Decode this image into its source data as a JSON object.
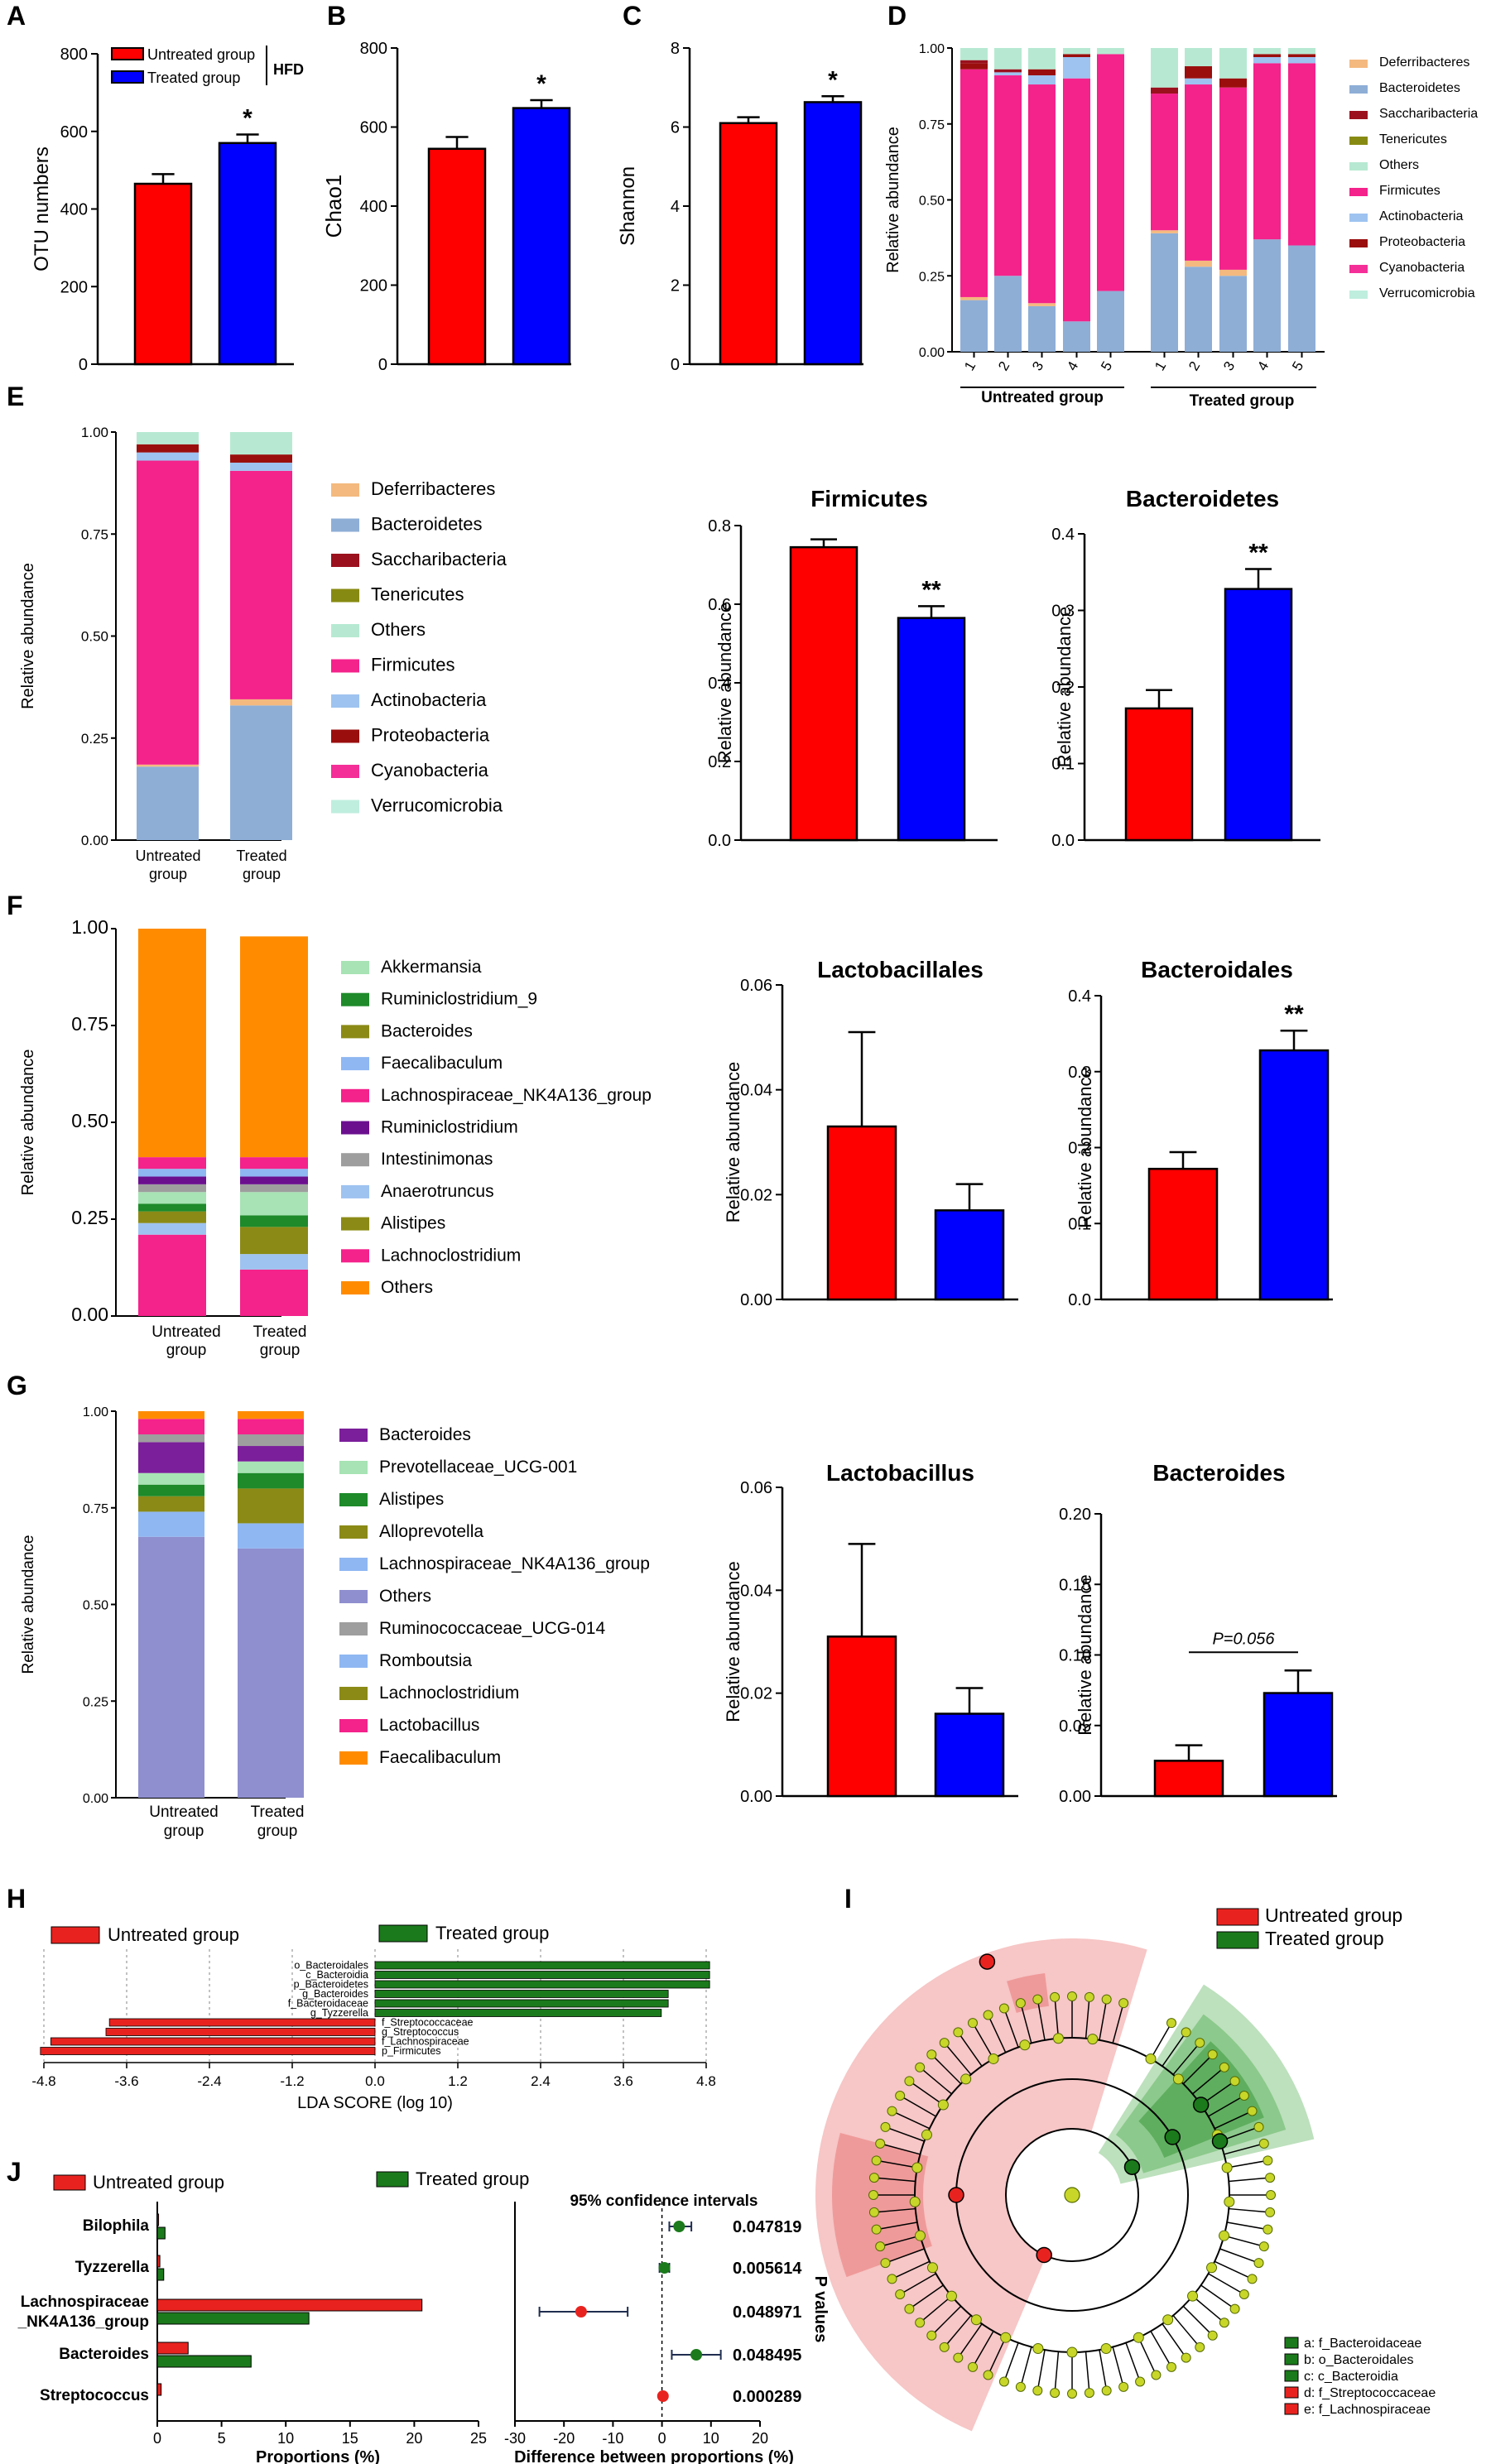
{
  "colors": {
    "untreated": "#ff0000",
    "treated": "#0000ff",
    "lefse_red": "#e8231f",
    "lefse_green": "#1b7a1b",
    "axis": "#000000"
  },
  "phylum_legend": [
    {
      "name": "Deferribacteres",
      "color": "#f4b97f"
    },
    {
      "name": "Bacteroidetes",
      "color": "#8eaed6"
    },
    {
      "name": "Saccharibacteria",
      "color": "#9b111e"
    },
    {
      "name": "Tenericutes",
      "color": "#878a12"
    },
    {
      "name": "Others",
      "color": "#b7e9d2"
    },
    {
      "name": "Firmicutes",
      "color": "#f4228b"
    },
    {
      "name": "Actinobacteria",
      "color": "#9ec3f0"
    },
    {
      "name": "Proteobacteria",
      "color": "#9a0e0e"
    },
    {
      "name": "Cyanobacteria",
      "color": "#f42f98"
    },
    {
      "name": "Verrucomicrobia",
      "color": "#bfeede"
    }
  ],
  "genus_legend": [
    {
      "name": "Akkermansia",
      "color": "#a7e3b4"
    },
    {
      "name": "Ruminiclostridium_9",
      "color": "#1e8a2a"
    },
    {
      "name": "Bacteroides",
      "color": "#8b8a16"
    },
    {
      "name": "Faecalibaculum",
      "color": "#8fb7f2"
    },
    {
      "name": "Lachnospiraceae_NK4A136_group",
      "color": "#f4228b"
    },
    {
      "name": "Ruminiclostridium",
      "color": "#6b0f8f"
    },
    {
      "name": "Intestinimonas",
      "color": "#9e9e9e"
    },
    {
      "name": "Anaerotruncus",
      "color": "#9ec3f0"
    },
    {
      "name": "Alistipes",
      "color": "#8b8a16"
    },
    {
      "name": "Lachnoclostridium",
      "color": "#f4228b"
    },
    {
      "name": "Others",
      "color": "#ff8c00"
    }
  ],
  "species_legend": [
    {
      "name": "Bacteroides",
      "color": "#7b1f9a"
    },
    {
      "name": "Prevotellaceae_UCG-001",
      "color": "#a7e3b4"
    },
    {
      "name": "Alistipes",
      "color": "#1e8a2a"
    },
    {
      "name": "Alloprevotella",
      "color": "#8b8a16"
    },
    {
      "name": "Lachnospiraceae_NK4A136_group",
      "color": "#8fb7f2"
    },
    {
      "name": "Others",
      "color": "#8f8fcf"
    },
    {
      "name": "Ruminococcaceae_UCG-014",
      "color": "#9e9e9e"
    },
    {
      "name": "Romboutsia",
      "color": "#8fb7f2"
    },
    {
      "name": "Lachnoclostridium",
      "color": "#8b8a16"
    },
    {
      "name": "Lactobacillus",
      "color": "#f4228b"
    },
    {
      "name": "Faecalibaculum",
      "color": "#ff8c00"
    }
  ],
  "chart_data": [
    {
      "id": "A",
      "type": "bar",
      "ylabel": "OTU numbers",
      "categories": [
        "Untreated group",
        "Treated group"
      ],
      "values": [
        465,
        570
      ],
      "errors": [
        25,
        22
      ],
      "ylim": [
        0,
        800
      ],
      "yticks": [
        "0",
        "200",
        "400",
        "600",
        "800"
      ],
      "sig": "*",
      "legend": [
        "Untreated group",
        "Treated group"
      ],
      "legend_note": "HFD"
    },
    {
      "id": "B",
      "type": "bar",
      "ylabel": "Chao1",
      "categories": [
        "Untreated group",
        "Treated group"
      ],
      "values": [
        545,
        648
      ],
      "errors": [
        30,
        20
      ],
      "ylim": [
        0,
        800
      ],
      "yticks": [
        "0",
        "200",
        "400",
        "600",
        "800"
      ],
      "sig": "*"
    },
    {
      "id": "C",
      "type": "bar",
      "ylabel": "Shannon",
      "categories": [
        "Untreated group",
        "Treated group"
      ],
      "values": [
        6.1,
        6.63
      ],
      "errors": [
        0.15,
        0.15
      ],
      "ylim": [
        0,
        8
      ],
      "yticks": [
        "0",
        "2",
        "4",
        "6",
        "8"
      ],
      "sig": "*"
    },
    {
      "id": "D",
      "type": "stacked_bar",
      "ylabel": "Relative abundance",
      "yticks": [
        "0.00",
        "0.25",
        "0.50",
        "0.75",
        "1.00"
      ],
      "samples": [
        "1",
        "2",
        "3",
        "4",
        "5",
        "1",
        "2",
        "3",
        "4",
        "5"
      ],
      "groups": [
        "Untreated group",
        "Treated group"
      ],
      "series_order": [
        "Bacteroidetes",
        "Deferribacteres",
        "Firmicutes",
        "Actinobacteria",
        "Proteobacteria",
        "Saccharibacteria",
        "Others"
      ],
      "stacks": [
        [
          0.17,
          0.01,
          0.75,
          0.0,
          0.02,
          0.01,
          0.04
        ],
        [
          0.25,
          0.0,
          0.66,
          0.01,
          0.0,
          0.01,
          0.07
        ],
        [
          0.15,
          0.01,
          0.72,
          0.03,
          0.02,
          0.0,
          0.07
        ],
        [
          0.1,
          0.0,
          0.8,
          0.07,
          0.01,
          0.0,
          0.02
        ],
        [
          0.2,
          0.0,
          0.78,
          0.0,
          0.0,
          0.0,
          0.02
        ],
        [
          0.39,
          0.01,
          0.45,
          0.0,
          0.0,
          0.02,
          0.13
        ],
        [
          0.28,
          0.02,
          0.58,
          0.02,
          0.04,
          0.0,
          0.06
        ],
        [
          0.25,
          0.02,
          0.6,
          0.0,
          0.03,
          0.0,
          0.1
        ],
        [
          0.37,
          0.0,
          0.58,
          0.02,
          0.01,
          0.0,
          0.02
        ],
        [
          0.35,
          0.0,
          0.6,
          0.02,
          0.01,
          0.0,
          0.02
        ]
      ]
    },
    {
      "id": "E_stack",
      "type": "stacked_bar",
      "ylabel": "Relative abundance",
      "yticks": [
        "0.00",
        "0.25",
        "0.50",
        "0.75",
        "1.00"
      ],
      "categories": [
        "Untreated group",
        "Treated group"
      ],
      "series_order": [
        "Bacteroidetes",
        "Deferribacteres",
        "Firmicutes",
        "Actinobacteria",
        "Proteobacteria",
        "Others"
      ],
      "stacks": [
        [
          0.18,
          0.005,
          0.745,
          0.02,
          0.02,
          0.03
        ],
        [
          0.33,
          0.015,
          0.56,
          0.02,
          0.02,
          0.055
        ]
      ]
    },
    {
      "id": "E_firm",
      "type": "bar",
      "title": "Firmicutes",
      "ylabel": "Relative abundance",
      "values": [
        0.745,
        0.565
      ],
      "errors": [
        0.02,
        0.03
      ],
      "ylim": [
        0,
        0.8
      ],
      "yticks": [
        "0.0",
        "0.2",
        "0.4",
        "0.6",
        "0.8"
      ],
      "sig": "**"
    },
    {
      "id": "E_bact",
      "type": "bar",
      "title": "Bacteroidetes",
      "ylabel": "Relative abundance",
      "values": [
        0.172,
        0.328
      ],
      "errors": [
        0.024,
        0.026
      ],
      "ylim": [
        0,
        0.4
      ],
      "yticks": [
        "0.0",
        "0.1",
        "0.2",
        "0.3",
        "0.4"
      ],
      "sig": "**"
    },
    {
      "id": "F_stack",
      "type": "stacked_bar",
      "ylabel": "Relative abundance",
      "yticks": [
        "0.00",
        "0.25",
        "0.50",
        "0.75",
        "1.00"
      ],
      "categories": [
        "Untreated group",
        "Treated group"
      ],
      "series_order": [
        "Lachnoclostridium",
        "Anaerotruncus",
        "Alistipes",
        "Ruminiclostridium_9",
        "Akkermansia",
        "Intestinimonas",
        "Ruminiclostridium",
        "Faecalibaculum",
        "Lachnospiraceae_NK4A136_group",
        "Others"
      ],
      "stacks": [
        [
          0.21,
          0.03,
          0.03,
          0.02,
          0.03,
          0.02,
          0.02,
          0.02,
          0.03,
          0.59
        ],
        [
          0.12,
          0.04,
          0.07,
          0.03,
          0.06,
          0.02,
          0.02,
          0.02,
          0.03,
          0.57
        ]
      ]
    },
    {
      "id": "F_lacto",
      "type": "bar",
      "title": "Lactobacillales",
      "ylabel": "Relative abundance",
      "values": [
        0.033,
        0.017
      ],
      "errors": [
        0.018,
        0.005
      ],
      "ylim": [
        0,
        0.06
      ],
      "yticks": [
        "0.00",
        "0.02",
        "0.04",
        "0.06"
      ],
      "sig": ""
    },
    {
      "id": "F_bact",
      "type": "bar",
      "title": "Bacteroidales",
      "ylabel": "Relative abundance",
      "values": [
        0.172,
        0.328
      ],
      "errors": [
        0.022,
        0.026
      ],
      "ylim": [
        0,
        0.4
      ],
      "yticks": [
        "0.0",
        "0.1",
        "0.2",
        "0.3",
        "0.4"
      ],
      "sig": "**"
    },
    {
      "id": "G_stack",
      "type": "stacked_bar",
      "ylabel": "Relative abundance",
      "yticks": [
        "0.00",
        "0.25",
        "0.50",
        "0.75",
        "1.00"
      ],
      "categories": [
        "Untreated group",
        "Treated group"
      ],
      "series_order": [
        "Others",
        "Lachnospiraceae_NK4A136_group",
        "Alloprevotella",
        "Alistipes",
        "Prevotellaceae_UCG-001",
        "Bacteroides",
        "Ruminococcaceae_UCG-014",
        "Lactobacillus",
        "Faecalibaculum"
      ],
      "stacks": [
        [
          0.675,
          0.065,
          0.04,
          0.03,
          0.03,
          0.08,
          0.02,
          0.04,
          0.02
        ],
        [
          0.645,
          0.065,
          0.09,
          0.04,
          0.03,
          0.04,
          0.03,
          0.04,
          0.02
        ]
      ]
    },
    {
      "id": "G_lacto",
      "type": "bar",
      "title": "Lactobacillus",
      "ylabel": "Relative abundance",
      "values": [
        0.031,
        0.016
      ],
      "errors": [
        0.018,
        0.005
      ],
      "ylim": [
        0,
        0.06
      ],
      "yticks": [
        "0.00",
        "0.02",
        "0.04",
        "0.06"
      ],
      "sig": ""
    },
    {
      "id": "G_bact",
      "type": "bar",
      "title": "Bacteroides",
      "ylabel": "Relative abundance",
      "values": [
        0.025,
        0.073
      ],
      "errors": [
        0.011,
        0.016
      ],
      "ylim": [
        0,
        0.2
      ],
      "yticks": [
        "0.00",
        "0.05",
        "0.10",
        "0.15",
        "0.20"
      ],
      "sig": "P=0.056"
    },
    {
      "id": "H",
      "type": "bar",
      "orientation": "horizontal",
      "xlabel": "LDA SCORE (log 10)",
      "xlim": [
        -4.8,
        4.8
      ],
      "xticks": [
        "-4.8",
        "-3.6",
        "-2.4",
        "-1.2",
        "0.0",
        "1.2",
        "2.4",
        "3.6",
        "4.8"
      ],
      "legend": [
        "Untreated group",
        "Treated group"
      ],
      "categories": [
        "o_Bacteroidales",
        "c_Bacteroidia",
        "p_Bacteroidetes",
        "g_Bacteroides",
        "f_Bacteroidaceae",
        "g_Tyzzerella",
        "f_Streptococcaceae",
        "g_Streptococcus",
        "f_Lachnospiraceae",
        "p_Firmicutes"
      ],
      "values": [
        4.85,
        4.85,
        4.85,
        4.25,
        4.25,
        4.15,
        -3.85,
        -3.9,
        -4.7,
        -4.85
      ]
    },
    {
      "id": "J_prop",
      "type": "bar",
      "orientation": "horizontal",
      "xlabel": "Proportions (%)",
      "xticks": [
        "0",
        "5",
        "10",
        "15",
        "20",
        "25"
      ],
      "xlim": [
        0,
        25
      ],
      "legend": [
        "Untreated group",
        "Treated group"
      ],
      "categories": [
        "Bilophila",
        "Tyzzerella",
        "Lachnospiraceae _NK4A136_group",
        "Bacteroides",
        "Streptococcus"
      ],
      "series": [
        {
          "name": "Untreated group",
          "values": [
            0.1,
            0.2,
            20.6,
            2.4,
            0.3
          ]
        },
        {
          "name": "Treated group",
          "values": [
            0.6,
            0.5,
            11.8,
            7.3,
            0.0
          ]
        }
      ]
    },
    {
      "id": "J_diff",
      "type": "scatter",
      "title": "95% confidence intervals",
      "xlabel": "Difference between proportions (%)",
      "xticks": [
        "-30",
        "-20",
        "-10",
        "0",
        "10",
        "20"
      ],
      "xlim": [
        -30,
        20
      ],
      "points": [
        {
          "x": 3.5,
          "lo": 1.5,
          "hi": 6,
          "group": "Treated group"
        },
        {
          "x": 0.5,
          "lo": -0.5,
          "hi": 1.5,
          "group": "Treated group"
        },
        {
          "x": -16.5,
          "lo": -25,
          "hi": -7,
          "group": "Untreated group"
        },
        {
          "x": 7,
          "lo": 2,
          "hi": 12,
          "group": "Treated group"
        },
        {
          "x": 0.2,
          "lo": 0,
          "hi": 0.4,
          "group": "Untreated group"
        }
      ],
      "pvalues": [
        "0.047819",
        "0.005614",
        "0.048971",
        "0.048495",
        "0.000289"
      ],
      "pvalue_label": "P values"
    }
  ],
  "panel_labels": [
    "A",
    "B",
    "C",
    "D",
    "E",
    "F",
    "G",
    "H",
    "I",
    "J"
  ],
  "d_group_labels": [
    "Untreated group",
    "Treated group"
  ],
  "xcat": {
    "line1": "Untreated",
    "line2": "group",
    "line3": "Treated",
    "line4": "group"
  },
  "cladogram": {
    "legend": [
      "Untreated group",
      "Treated group"
    ],
    "keys": [
      "a: f_Bacteroidaceae",
      "b: o_Bacteroidales",
      "c: c_Bacteroidia",
      "d: f_Streptococcaceae",
      "e: f_Lachnospiraceae"
    ]
  }
}
